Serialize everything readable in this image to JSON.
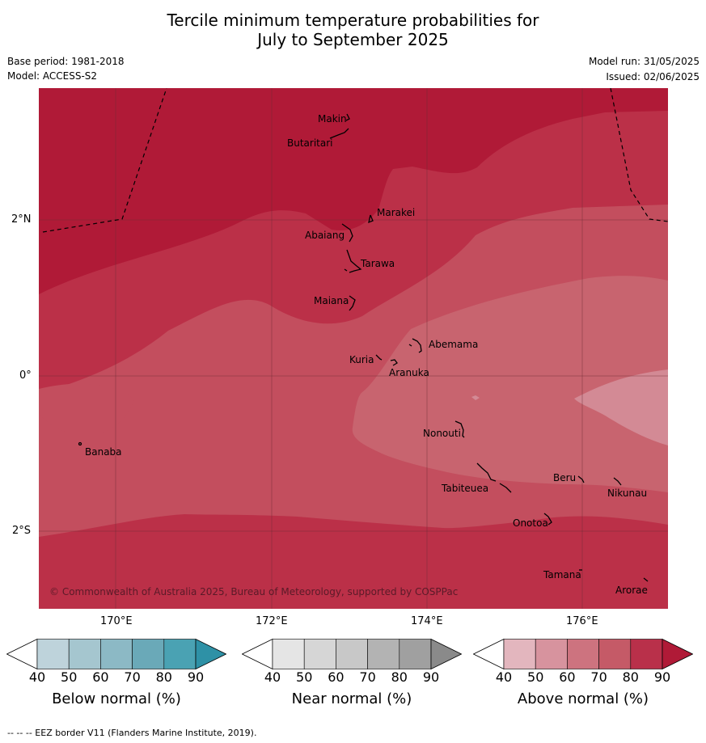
{
  "title_line1": "Tercile minimum temperature probabilities for",
  "title_line2": "July to September 2025",
  "base_period": "Base period: 1981-2018",
  "model": "Model: ACCESS-S2",
  "model_run": "Model run: 31/05/2025",
  "issued": "Issued: 02/06/2025",
  "copyright": "© Commonwealth of Australia 2025, Bureau of Meteorology, supported by COSPPac",
  "lon_ticks": [
    "170°E",
    "172°E",
    "174°E",
    "176°E"
  ],
  "lat_ticks": [
    "2°N",
    "0°",
    "2°S"
  ],
  "places": [
    "Makin",
    "Butaritari",
    "Marakei",
    "Abaiang",
    "Tarawa",
    "Maiana",
    "Abemama",
    "Kuria",
    "Aranuka",
    "Banaba",
    "Nonouti",
    "Tabiteuea",
    "Beru",
    "Nikunau",
    "Onotoa",
    "Tamana",
    "Arorae"
  ],
  "colorbars": [
    {
      "label": "Below normal (%)",
      "ticks": [
        "40",
        "50",
        "60",
        "70",
        "80",
        "90"
      ],
      "colors": [
        "#ffffff",
        "#bed3db",
        "#a5c6cf",
        "#8cb9c5",
        "#6aa9b8",
        "#4aa2b3",
        "#2e91a6"
      ]
    },
    {
      "label": "Near normal (%)",
      "ticks": [
        "40",
        "50",
        "60",
        "70",
        "80",
        "90"
      ],
      "colors": [
        "#ffffff",
        "#e5e5e5",
        "#d6d6d6",
        "#c8c8c8",
        "#b3b3b3",
        "#a0a0a0",
        "#8a8a8a"
      ]
    },
    {
      "label": "Above normal (%)",
      "ticks": [
        "40",
        "50",
        "60",
        "70",
        "80",
        "90"
      ],
      "colors": [
        "#ffffff",
        "#e3b6be",
        "#d7939e",
        "#cd737f",
        "#c55a67",
        "#b9304a",
        "#b01a37"
      ]
    }
  ],
  "footnote": "--  --  -- EEZ border V11 (Flanders Marine Institute, 2019)."
}
